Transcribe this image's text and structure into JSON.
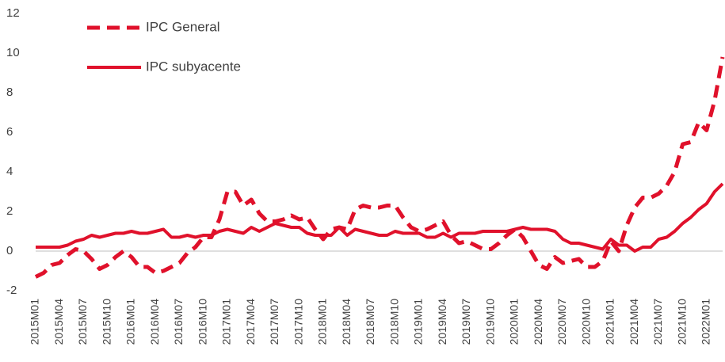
{
  "chart_data": {
    "type": "line",
    "categories": [
      "2015M01",
      null,
      null,
      "2015M04",
      null,
      null,
      "2015M07",
      null,
      null,
      "2015M10",
      null,
      null,
      "2016M01",
      null,
      null,
      "2016M04",
      null,
      null,
      "2016M07",
      null,
      null,
      "2016M10",
      null,
      null,
      "2017M01",
      null,
      null,
      "2017M04",
      null,
      null,
      "2017M07",
      null,
      null,
      "2017M10",
      null,
      null,
      "2018M01",
      null,
      null,
      "2018M04",
      null,
      null,
      "2018M07",
      null,
      null,
      "2018M10",
      null,
      null,
      "2019M01",
      null,
      null,
      "2019M04",
      null,
      null,
      "2019M07",
      null,
      null,
      "2019M10",
      null,
      null,
      "2020M01",
      null,
      null,
      "2020M04",
      null,
      null,
      "2020M07",
      null,
      null,
      "2020M10",
      null,
      null,
      "2021M01",
      null,
      null,
      "2021M04",
      null,
      null,
      "2021M07",
      null,
      null,
      "2021M10",
      null,
      null,
      "2022M01",
      null,
      null
    ],
    "series": [
      {
        "name": "IPC General",
        "color": "#e0112b",
        "dash": true,
        "values": [
          -1.3,
          -1.1,
          -0.7,
          -0.6,
          -0.2,
          0.1,
          0.0,
          -0.4,
          -0.9,
          -0.7,
          -0.3,
          0.0,
          -0.3,
          -0.8,
          -0.8,
          -1.1,
          -1.0,
          -0.8,
          -0.6,
          -0.1,
          0.2,
          0.7,
          0.7,
          1.6,
          3.0,
          3.0,
          2.3,
          2.6,
          1.9,
          1.5,
          1.5,
          1.6,
          1.8,
          1.6,
          1.7,
          1.1,
          0.6,
          1.1,
          1.2,
          1.1,
          2.1,
          2.3,
          2.2,
          2.2,
          2.3,
          2.3,
          1.7,
          1.2,
          1.0,
          1.1,
          1.3,
          1.5,
          0.8,
          0.4,
          0.5,
          0.3,
          0.1,
          0.1,
          0.4,
          0.8,
          1.1,
          0.7,
          0.0,
          -0.7,
          -0.9,
          -0.3,
          -0.6,
          -0.5,
          -0.4,
          -0.8,
          -0.8,
          -0.5,
          0.5,
          0.0,
          1.3,
          2.2,
          2.7,
          2.7,
          2.9,
          3.3,
          4.0,
          5.4,
          5.5,
          6.5,
          6.1,
          7.6,
          9.8
        ]
      },
      {
        "name": "IPC subyacente",
        "color": "#e0112b",
        "dash": false,
        "values": [
          0.2,
          0.2,
          0.2,
          0.2,
          0.3,
          0.5,
          0.6,
          0.8,
          0.7,
          0.8,
          0.9,
          0.9,
          1.0,
          0.9,
          0.9,
          1.0,
          1.1,
          0.7,
          0.7,
          0.8,
          0.7,
          0.8,
          0.8,
          1.0,
          1.1,
          1.0,
          0.9,
          1.2,
          1.0,
          1.2,
          1.4,
          1.3,
          1.2,
          1.2,
          0.9,
          0.8,
          0.8,
          0.8,
          1.2,
          0.8,
          1.1,
          1.0,
          0.9,
          0.8,
          0.8,
          1.0,
          0.9,
          0.9,
          0.9,
          0.7,
          0.7,
          0.9,
          0.7,
          0.9,
          0.9,
          0.9,
          1.0,
          1.0,
          1.0,
          1.0,
          1.1,
          1.2,
          1.1,
          1.1,
          1.1,
          1.0,
          0.6,
          0.4,
          0.4,
          0.3,
          0.2,
          0.1,
          0.6,
          0.3,
          0.3,
          0.0,
          0.2,
          0.2,
          0.6,
          0.7,
          1.0,
          1.4,
          1.7,
          2.1,
          2.4,
          3.0,
          3.4
        ]
      }
    ],
    "ylim": [
      -2,
      12
    ],
    "yticks": [
      -2,
      0,
      2,
      4,
      6,
      8,
      10,
      12
    ],
    "grid": false,
    "legend": "top-left"
  }
}
